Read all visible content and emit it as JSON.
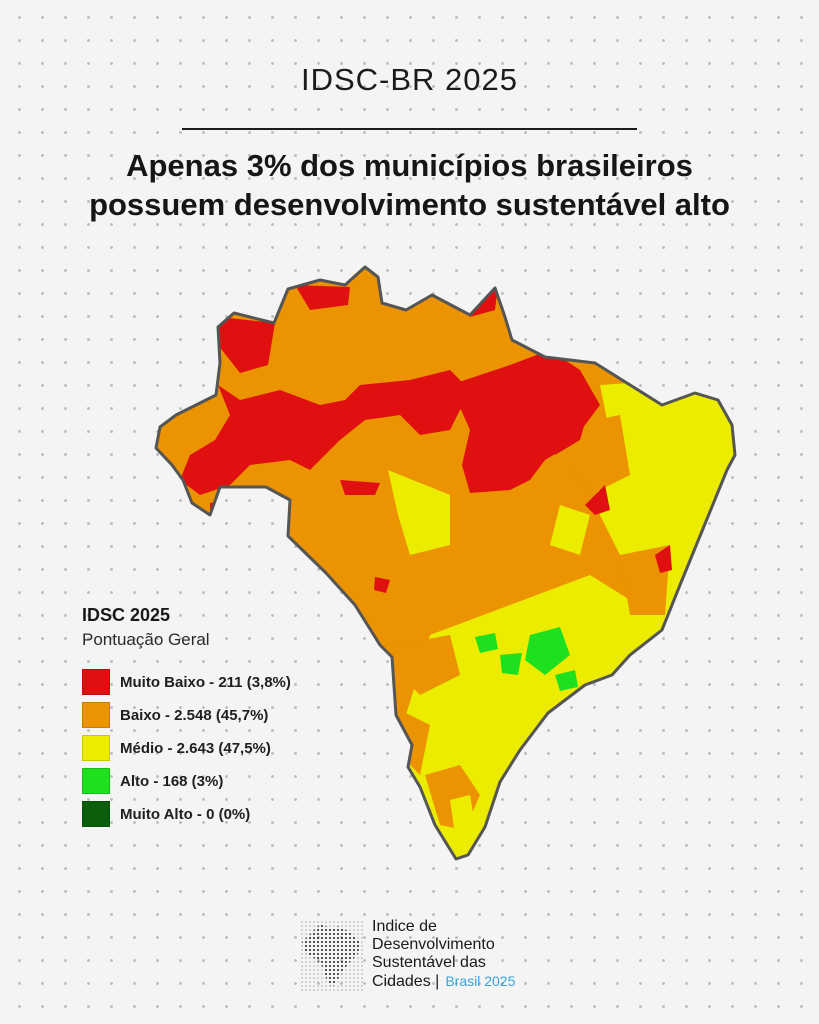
{
  "header": {
    "kicker": "IDSC-BR 2025",
    "headline_line1": "Apenas 3% dos municípios brasileiros",
    "headline_line2": "possuem desenvolvimento sustentável alto"
  },
  "legend": {
    "title": "IDSC 2025",
    "subtitle": "Pontuação Geral",
    "items": [
      {
        "label": "Muito Baixo - 211 (3,8%)",
        "category": "Muito Baixo",
        "count": 211,
        "percent": 3.8,
        "color": "#e01010"
      },
      {
        "label": "Baixo - 2.548 (45,7%)",
        "category": "Baixo",
        "count": 2548,
        "percent": 45.7,
        "color": "#eb9300"
      },
      {
        "label": "Médio - 2.643 (47,5%)",
        "category": "Médio",
        "count": 2643,
        "percent": 47.5,
        "color": "#ecec00"
      },
      {
        "label": "Alto - 168 (3%)",
        "category": "Alto",
        "count": 168,
        "percent": 3,
        "color": "#1fe01f"
      },
      {
        "label": "Muito Alto - 0 (0%)",
        "category": "Muito Alto",
        "count": 0,
        "percent": 0,
        "color": "#0b5e0b"
      }
    ]
  },
  "footer": {
    "logo_line1": "Indice de",
    "logo_line2": "Desenvolvimento",
    "logo_line3": "Sustentável das",
    "logo_line4": "Cidades |",
    "logo_brasil": "Brasil 2025",
    "logo_icon": "brazil-dot-map-icon"
  }
}
